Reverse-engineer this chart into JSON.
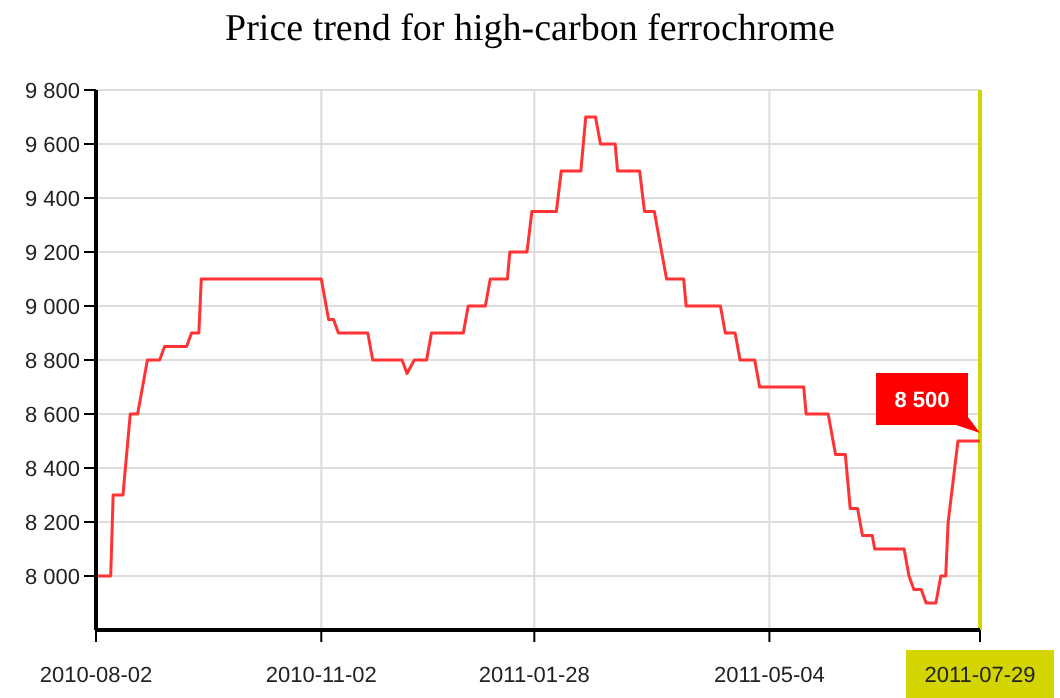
{
  "chart_data": {
    "type": "line",
    "title": "Price trend for high-carbon ferrochrome",
    "x": [
      "2010-08-02",
      "2010-08-08",
      "2010-08-09",
      "2010-08-13",
      "2010-08-16",
      "2010-08-19",
      "2010-08-21",
      "2010-08-23",
      "2010-08-28",
      "2010-08-30",
      "2010-09-08",
      "2010-09-10",
      "2010-09-13",
      "2010-09-14",
      "2010-11-02",
      "2010-11-04",
      "2010-11-05",
      "2010-11-07",
      "2010-11-09",
      "2010-11-21",
      "2010-11-23",
      "2010-12-05",
      "2010-12-07",
      "2010-12-10",
      "2010-12-15",
      "2010-12-17",
      "2010-12-30",
      "2011-01-01",
      "2011-01-08",
      "2011-01-10",
      "2011-01-17",
      "2011-01-18",
      "2011-01-25",
      "2011-01-27",
      "2011-02-06",
      "2011-02-08",
      "2011-02-16",
      "2011-02-18",
      "2011-02-22",
      "2011-02-24",
      "2011-03-02",
      "2011-03-03",
      "2011-03-12",
      "2011-03-14",
      "2011-03-18",
      "2011-03-21",
      "2011-03-23",
      "2011-03-30",
      "2011-03-31",
      "2011-04-14",
      "2011-04-16",
      "2011-04-20",
      "2011-04-22",
      "2011-04-28",
      "2011-04-30",
      "2011-05-18",
      "2011-05-19",
      "2011-05-28",
      "2011-05-31",
      "2011-06-04",
      "2011-06-06",
      "2011-06-09",
      "2011-06-11",
      "2011-06-15",
      "2011-06-16",
      "2011-06-28",
      "2011-06-30",
      "2011-07-02",
      "2011-07-05",
      "2011-07-07",
      "2011-07-11",
      "2011-07-13",
      "2011-07-15",
      "2011-07-16",
      "2011-07-20",
      "2011-07-29"
    ],
    "series": [
      {
        "color": "#ff3333",
        "values": [
          8000,
          8000,
          8300,
          8300,
          8600,
          8600,
          8700,
          8800,
          8800,
          8850,
          8850,
          8900,
          8900,
          9100,
          9100,
          9000,
          8950,
          8950,
          8900,
          8900,
          8800,
          8800,
          8750,
          8800,
          8800,
          8900,
          8900,
          9000,
          9000,
          9100,
          9100,
          9200,
          9200,
          9350,
          9350,
          9500,
          9500,
          9700,
          9700,
          9600,
          9600,
          9500,
          9500,
          9350,
          9350,
          9200,
          9100,
          9100,
          9000,
          9000,
          8900,
          8900,
          8800,
          8800,
          8700,
          8700,
          8600,
          8600,
          8450,
          8450,
          8250,
          8250,
          8150,
          8150,
          8100,
          8100,
          8000,
          7950,
          7950,
          7900,
          7900,
          8000,
          8000,
          8200,
          8500,
          8500
        ]
      }
    ],
    "xlim": [
      "2010-08-02",
      "2011-07-29"
    ],
    "xticks": [
      "2010-08-02",
      "2010-11-02",
      "2011-01-28",
      "2011-05-04",
      "2011-07-29"
    ],
    "ylim": [
      7800,
      9800
    ],
    "yticks": [
      {
        "value": 8000,
        "label": "8 000"
      },
      {
        "value": 8200,
        "label": "8 200"
      },
      {
        "value": 8400,
        "label": "8 400"
      },
      {
        "value": 8600,
        "label": "8 600"
      },
      {
        "value": 8800,
        "label": "8 800"
      },
      {
        "value": 9000,
        "label": "9 000"
      },
      {
        "value": 9200,
        "label": "9 200"
      },
      {
        "value": 9400,
        "label": "9 400"
      },
      {
        "value": 9600,
        "label": "9 600"
      },
      {
        "value": 9800,
        "label": "9 800"
      }
    ],
    "grid": true,
    "marker": "none",
    "line_style": "solid",
    "legend": false,
    "ref_lines": [
      {
        "axis": "x",
        "value": "2011-07-29",
        "color": "#d4d400"
      }
    ],
    "annotations": [
      {
        "text": "8 500",
        "x": "2011-07-29",
        "y": 8500
      }
    ]
  }
}
